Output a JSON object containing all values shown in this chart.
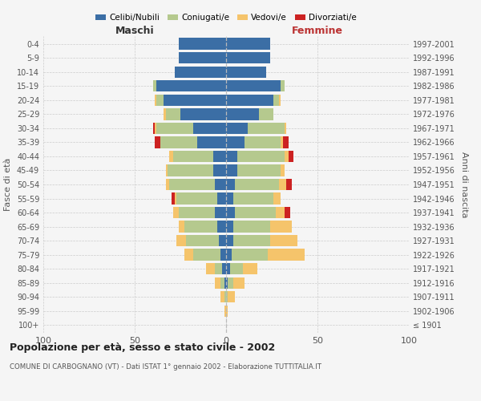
{
  "age_groups": [
    "100+",
    "95-99",
    "90-94",
    "85-89",
    "80-84",
    "75-79",
    "70-74",
    "65-69",
    "60-64",
    "55-59",
    "50-54",
    "45-49",
    "40-44",
    "35-39",
    "30-34",
    "25-29",
    "20-24",
    "15-19",
    "10-14",
    "5-9",
    "0-4"
  ],
  "birth_years": [
    "≤ 1901",
    "1902-1906",
    "1907-1911",
    "1912-1916",
    "1917-1921",
    "1922-1926",
    "1927-1931",
    "1932-1936",
    "1937-1941",
    "1942-1946",
    "1947-1951",
    "1952-1956",
    "1957-1961",
    "1962-1966",
    "1967-1971",
    "1972-1976",
    "1977-1981",
    "1982-1986",
    "1987-1991",
    "1992-1996",
    "1997-2001"
  ],
  "maschi": {
    "celibi": [
      0,
      0,
      0,
      1,
      2,
      3,
      4,
      5,
      6,
      5,
      6,
      7,
      7,
      16,
      18,
      25,
      34,
      38,
      28,
      26,
      26
    ],
    "coniugati": [
      0,
      0,
      1,
      2,
      4,
      15,
      18,
      18,
      20,
      22,
      25,
      25,
      22,
      20,
      20,
      8,
      4,
      2,
      0,
      0,
      0
    ],
    "vedovi": [
      0,
      1,
      2,
      3,
      5,
      5,
      5,
      3,
      3,
      1,
      2,
      1,
      2,
      0,
      1,
      1,
      1,
      0,
      0,
      0,
      0
    ],
    "divorziati": [
      0,
      0,
      0,
      0,
      0,
      0,
      0,
      0,
      0,
      2,
      0,
      0,
      0,
      3,
      1,
      0,
      0,
      0,
      0,
      0,
      0
    ]
  },
  "femmine": {
    "nubili": [
      0,
      0,
      0,
      1,
      2,
      3,
      4,
      4,
      5,
      4,
      5,
      6,
      6,
      10,
      12,
      18,
      26,
      30,
      22,
      24,
      24
    ],
    "coniugate": [
      0,
      0,
      1,
      3,
      7,
      20,
      20,
      20,
      22,
      22,
      24,
      24,
      26,
      20,
      20,
      8,
      3,
      2,
      0,
      0,
      0
    ],
    "vedove": [
      0,
      1,
      4,
      6,
      8,
      20,
      15,
      12,
      5,
      4,
      4,
      2,
      2,
      1,
      1,
      0,
      1,
      0,
      0,
      0,
      0
    ],
    "divorziate": [
      0,
      0,
      0,
      0,
      0,
      0,
      0,
      0,
      3,
      0,
      3,
      0,
      3,
      3,
      0,
      0,
      0,
      0,
      0,
      0,
      0
    ]
  },
  "colors": {
    "celibi": "#3b6ea5",
    "coniugati": "#b5c98e",
    "vedovi": "#f5c46b",
    "divorziati": "#cc2222"
  },
  "xlim": 100,
  "title": "Popolazione per età, sesso e stato civile - 2002",
  "subtitle": "COMUNE DI CARBOGNANO (VT) - Dati ISTAT 1° gennaio 2002 - Elaborazione TUTTITALIA.IT",
  "ylabel_left": "Fasce di età",
  "ylabel_right": "Anni di nascita",
  "xlabel_left": "Maschi",
  "xlabel_right": "Femmine",
  "bg_color": "#f5f5f5",
  "grid_color": "#cccccc"
}
